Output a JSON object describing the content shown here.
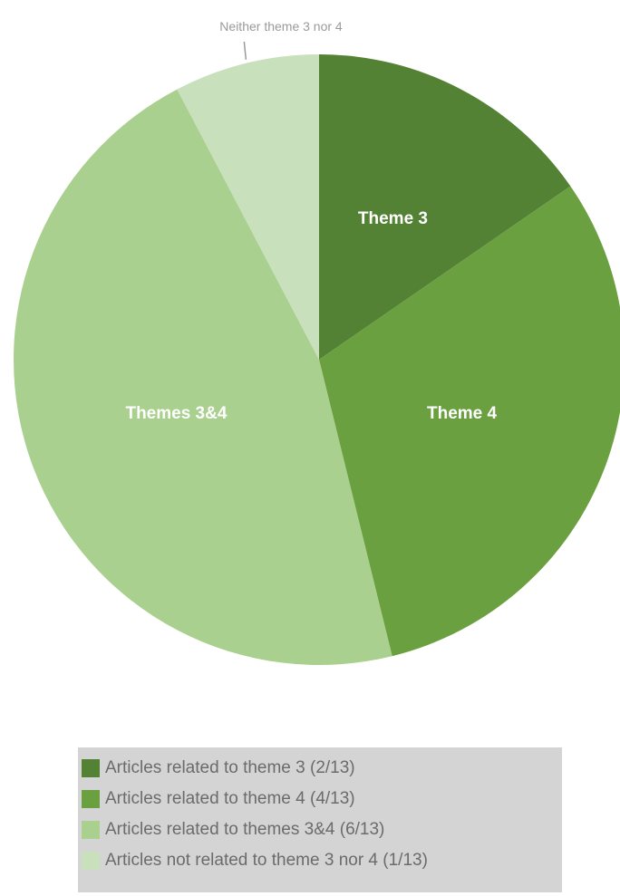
{
  "chart_data": {
    "type": "pie",
    "categories": [
      "Theme 3",
      "Theme 4",
      "Themes 3&4",
      "Neither theme 3 nor 4"
    ],
    "values": [
      2,
      4,
      6,
      1
    ],
    "slice_labels": [
      "Theme 3",
      "Theme 4",
      "Themes 3&4",
      "Neither theme 3 nor 4"
    ],
    "colors": [
      "#548235",
      "#6aa03f",
      "#a9d08e",
      "#c9e0bd"
    ],
    "legend": {
      "placement": "bottom",
      "entries": [
        "Articles related to theme 3 (2/13)",
        "Articles related to theme 4 (4/13)",
        "Articles related to themes 3&4 (6/13)",
        "Articles not related to theme 3 nor 4 (1/13)"
      ]
    },
    "grid": false,
    "title": ""
  }
}
